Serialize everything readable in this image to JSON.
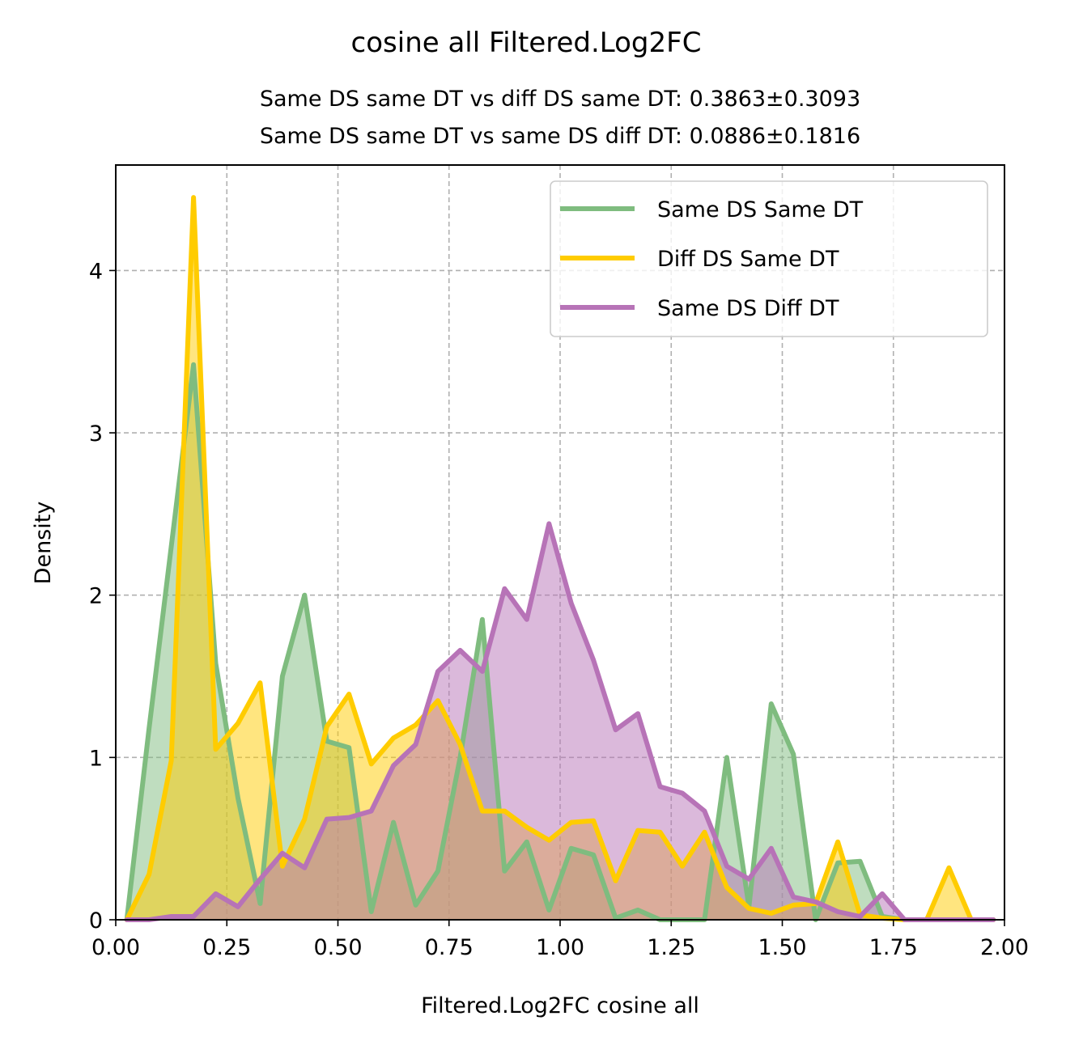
{
  "chart_data": {
    "type": "area",
    "title": "cosine all Filtered.Log2FC",
    "subtitle_lines": [
      "Same DS same DT vs diff DS same DT: 0.3863±0.3093",
      "Same DS same DT vs same DS diff DT: 0.0886±0.1816"
    ],
    "xlabel": "Filtered.Log2FC cosine all",
    "ylabel": "Density",
    "xlim": [
      0,
      2
    ],
    "ylim": [
      0,
      4.65
    ],
    "xticks": [
      0,
      0.25,
      0.5,
      0.75,
      1.0,
      1.25,
      1.5,
      1.75,
      2.0
    ],
    "xtick_labels": [
      "0.00",
      "0.25",
      "0.50",
      "0.75",
      "1.00",
      "1.25",
      "1.50",
      "1.75",
      "2.00"
    ],
    "yticks": [
      0,
      1,
      2,
      3,
      4
    ],
    "ytick_labels": [
      "0",
      "1",
      "2",
      "3",
      "4"
    ],
    "grid": true,
    "legend_position": "top-right",
    "x": [
      0.025,
      0.075,
      0.125,
      0.175,
      0.225,
      0.275,
      0.325,
      0.375,
      0.425,
      0.475,
      0.525,
      0.575,
      0.625,
      0.675,
      0.725,
      0.775,
      0.825,
      0.875,
      0.925,
      0.975,
      1.025,
      1.075,
      1.125,
      1.175,
      1.225,
      1.275,
      1.325,
      1.375,
      1.425,
      1.475,
      1.525,
      1.575,
      1.625,
      1.675,
      1.725,
      1.775,
      1.825,
      1.875,
      1.925,
      1.975
    ],
    "series": [
      {
        "name": "Same DS Same DT",
        "color": "#7fbc7f",
        "values": [
          0.0,
          1.18,
          2.3,
          3.42,
          1.58,
          0.75,
          0.1,
          1.5,
          2.0,
          1.1,
          1.06,
          0.05,
          0.6,
          0.09,
          0.3,
          1.0,
          1.85,
          0.3,
          0.48,
          0.06,
          0.44,
          0.4,
          0.01,
          0.06,
          0.0,
          0.0,
          0.0,
          1.0,
          0.08,
          1.33,
          1.02,
          0.0,
          0.35,
          0.36,
          0.02,
          0.0,
          0.0,
          0.0,
          0.0,
          0.0
        ]
      },
      {
        "name": "Diff DS Same DT",
        "color": "#ffcc00",
        "values": [
          0.0,
          0.28,
          0.98,
          4.45,
          1.05,
          1.21,
          1.46,
          0.33,
          0.62,
          1.19,
          1.39,
          0.96,
          1.12,
          1.2,
          1.35,
          1.08,
          0.67,
          0.67,
          0.57,
          0.49,
          0.6,
          0.61,
          0.24,
          0.55,
          0.54,
          0.33,
          0.54,
          0.2,
          0.07,
          0.04,
          0.09,
          0.1,
          0.48,
          0.03,
          0.01,
          0.0,
          0.0,
          0.32,
          0.0,
          0.0
        ]
      },
      {
        "name": "Same DS Diff DT",
        "color": "#b773b7",
        "values": [
          0.0,
          0.0,
          0.02,
          0.02,
          0.16,
          0.08,
          0.25,
          0.41,
          0.32,
          0.62,
          0.63,
          0.67,
          0.95,
          1.08,
          1.53,
          1.66,
          1.53,
          2.04,
          1.85,
          2.44,
          1.95,
          1.6,
          1.17,
          1.27,
          0.82,
          0.78,
          0.67,
          0.33,
          0.25,
          0.44,
          0.14,
          0.11,
          0.05,
          0.02,
          0.16,
          0.0,
          0.0,
          0.0,
          0.0,
          0.0
        ]
      }
    ]
  }
}
